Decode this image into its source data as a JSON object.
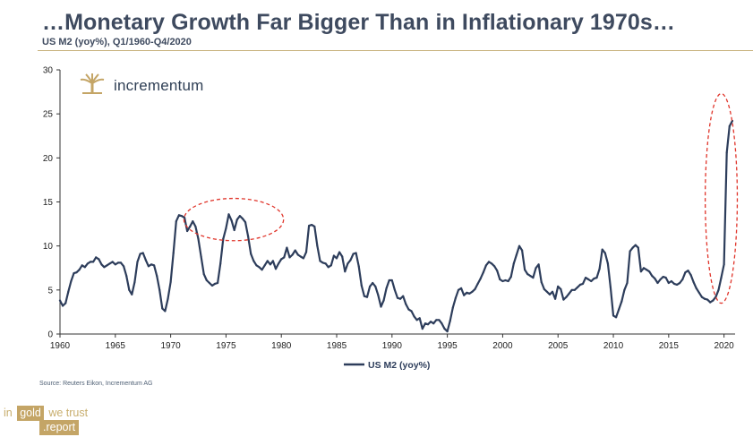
{
  "header": {
    "title": "…Monetary Growth Far Bigger Than in Inflationary 1970s…",
    "subtitle": "US M2 (yoy%), Q1/1960-Q4/2020"
  },
  "logo": {
    "text": "incrementum"
  },
  "source": "Source: Reuters Eikon, Incrementum AG",
  "brand": {
    "part1": "in",
    "part2": "gold",
    "part3": "we trust",
    "part4": ".report"
  },
  "colors": {
    "line": "#2d3d5b",
    "accent": "#c4a566",
    "highlight": "#e0342a"
  },
  "chart_data": {
    "type": "line",
    "title": "US M2 (yoy%)",
    "xlim": [
      1960,
      2021
    ],
    "ylim": [
      0,
      30
    ],
    "x_ticks": [
      1960,
      1965,
      1970,
      1975,
      1980,
      1985,
      1990,
      1995,
      2000,
      2005,
      2010,
      2015,
      2020
    ],
    "y_ticks": [
      0,
      5,
      10,
      15,
      20,
      25,
      30
    ],
    "legend": {
      "label": "US M2 (yoy%)",
      "position": "bottom"
    },
    "annotations": [
      {
        "shape": "ellipse",
        "note": "1970s peak",
        "x_range": [
          1971.2,
          1980.2
        ],
        "y_range": [
          10.6,
          15.4
        ]
      },
      {
        "shape": "ellipse",
        "note": "2020 surge",
        "x_range": [
          2018.3,
          2021.2
        ],
        "y_range": [
          3.5,
          27.3
        ]
      }
    ],
    "series": [
      {
        "name": "US M2 (yoy%)",
        "points": [
          [
            1960.0,
            3.8
          ],
          [
            1960.25,
            3.2
          ],
          [
            1960.5,
            3.5
          ],
          [
            1960.75,
            4.8
          ],
          [
            1961.0,
            6.0
          ],
          [
            1961.25,
            6.9
          ],
          [
            1961.5,
            7.0
          ],
          [
            1961.75,
            7.3
          ],
          [
            1962.0,
            7.8
          ],
          [
            1962.25,
            7.6
          ],
          [
            1962.5,
            8.0
          ],
          [
            1962.75,
            8.2
          ],
          [
            1963.0,
            8.2
          ],
          [
            1963.25,
            8.7
          ],
          [
            1963.5,
            8.5
          ],
          [
            1963.75,
            7.9
          ],
          [
            1964.0,
            7.6
          ],
          [
            1964.25,
            7.8
          ],
          [
            1964.5,
            8.0
          ],
          [
            1964.75,
            8.2
          ],
          [
            1965.0,
            7.9
          ],
          [
            1965.25,
            8.1
          ],
          [
            1965.5,
            8.1
          ],
          [
            1965.75,
            7.7
          ],
          [
            1966.0,
            6.6
          ],
          [
            1966.25,
            5.0
          ],
          [
            1966.5,
            4.5
          ],
          [
            1966.75,
            5.9
          ],
          [
            1967.0,
            8.2
          ],
          [
            1967.25,
            9.1
          ],
          [
            1967.5,
            9.2
          ],
          [
            1967.75,
            8.4
          ],
          [
            1968.0,
            7.7
          ],
          [
            1968.25,
            7.9
          ],
          [
            1968.5,
            7.8
          ],
          [
            1968.75,
            6.6
          ],
          [
            1969.0,
            5.0
          ],
          [
            1969.25,
            2.9
          ],
          [
            1969.5,
            2.6
          ],
          [
            1969.75,
            4.0
          ],
          [
            1970.0,
            5.9
          ],
          [
            1970.25,
            9.2
          ],
          [
            1970.5,
            12.8
          ],
          [
            1970.75,
            13.5
          ],
          [
            1971.0,
            13.4
          ],
          [
            1971.25,
            13.2
          ],
          [
            1971.5,
            11.7
          ],
          [
            1971.75,
            12.2
          ],
          [
            1972.0,
            12.8
          ],
          [
            1972.25,
            12.2
          ],
          [
            1972.5,
            10.8
          ],
          [
            1972.75,
            8.8
          ],
          [
            1973.0,
            6.8
          ],
          [
            1973.25,
            6.1
          ],
          [
            1973.5,
            5.8
          ],
          [
            1973.75,
            5.5
          ],
          [
            1974.0,
            5.7
          ],
          [
            1974.25,
            5.8
          ],
          [
            1974.5,
            8.0
          ],
          [
            1974.75,
            10.8
          ],
          [
            1975.0,
            12.0
          ],
          [
            1975.25,
            13.6
          ],
          [
            1975.5,
            12.9
          ],
          [
            1975.75,
            11.8
          ],
          [
            1976.0,
            13.0
          ],
          [
            1976.25,
            13.4
          ],
          [
            1976.5,
            13.1
          ],
          [
            1976.75,
            12.7
          ],
          [
            1977.0,
            11.1
          ],
          [
            1977.25,
            9.1
          ],
          [
            1977.5,
            8.3
          ],
          [
            1977.75,
            7.8
          ],
          [
            1978.0,
            7.6
          ],
          [
            1978.25,
            7.3
          ],
          [
            1978.5,
            7.8
          ],
          [
            1978.75,
            8.3
          ],
          [
            1979.0,
            7.9
          ],
          [
            1979.25,
            8.3
          ],
          [
            1979.5,
            7.4
          ],
          [
            1979.75,
            8.0
          ],
          [
            1980.0,
            8.5
          ],
          [
            1980.25,
            8.7
          ],
          [
            1980.5,
            9.8
          ],
          [
            1980.75,
            8.7
          ],
          [
            1981.0,
            9.0
          ],
          [
            1981.25,
            9.5
          ],
          [
            1981.5,
            9.0
          ],
          [
            1981.75,
            8.8
          ],
          [
            1982.0,
            8.6
          ],
          [
            1982.25,
            9.3
          ],
          [
            1982.5,
            12.3
          ],
          [
            1982.75,
            12.4
          ],
          [
            1983.0,
            12.2
          ],
          [
            1983.25,
            10.0
          ],
          [
            1983.5,
            8.3
          ],
          [
            1983.75,
            8.1
          ],
          [
            1984.0,
            8.0
          ],
          [
            1984.25,
            7.6
          ],
          [
            1984.5,
            7.8
          ],
          [
            1984.75,
            8.9
          ],
          [
            1985.0,
            8.6
          ],
          [
            1985.25,
            9.3
          ],
          [
            1985.5,
            8.8
          ],
          [
            1985.75,
            7.1
          ],
          [
            1986.0,
            8.0
          ],
          [
            1986.25,
            8.4
          ],
          [
            1986.5,
            9.1
          ],
          [
            1986.75,
            9.2
          ],
          [
            1987.0,
            7.7
          ],
          [
            1987.25,
            5.5
          ],
          [
            1987.5,
            4.3
          ],
          [
            1987.75,
            4.2
          ],
          [
            1988.0,
            5.4
          ],
          [
            1988.25,
            5.8
          ],
          [
            1988.5,
            5.4
          ],
          [
            1988.75,
            4.4
          ],
          [
            1989.0,
            3.1
          ],
          [
            1989.25,
            3.8
          ],
          [
            1989.5,
            5.2
          ],
          [
            1989.75,
            6.1
          ],
          [
            1990.0,
            6.1
          ],
          [
            1990.25,
            5.0
          ],
          [
            1990.5,
            4.1
          ],
          [
            1990.75,
            4.0
          ],
          [
            1991.0,
            4.3
          ],
          [
            1991.25,
            3.4
          ],
          [
            1991.5,
            2.8
          ],
          [
            1991.75,
            2.6
          ],
          [
            1992.0,
            2.0
          ],
          [
            1992.25,
            1.6
          ],
          [
            1992.5,
            1.8
          ],
          [
            1992.75,
            0.6
          ],
          [
            1993.0,
            1.2
          ],
          [
            1993.25,
            1.1
          ],
          [
            1993.5,
            1.4
          ],
          [
            1993.75,
            1.2
          ],
          [
            1994.0,
            1.6
          ],
          [
            1994.25,
            1.6
          ],
          [
            1994.5,
            1.2
          ],
          [
            1994.75,
            0.6
          ],
          [
            1995.0,
            0.3
          ],
          [
            1995.25,
            1.5
          ],
          [
            1995.5,
            3.0
          ],
          [
            1995.75,
            4.1
          ],
          [
            1996.0,
            5.0
          ],
          [
            1996.25,
            5.2
          ],
          [
            1996.5,
            4.4
          ],
          [
            1996.75,
            4.7
          ],
          [
            1997.0,
            4.6
          ],
          [
            1997.25,
            4.8
          ],
          [
            1997.5,
            5.1
          ],
          [
            1997.75,
            5.7
          ],
          [
            1998.0,
            6.3
          ],
          [
            1998.25,
            7.0
          ],
          [
            1998.5,
            7.8
          ],
          [
            1998.75,
            8.2
          ],
          [
            1999.0,
            8.0
          ],
          [
            1999.25,
            7.7
          ],
          [
            1999.5,
            7.2
          ],
          [
            1999.75,
            6.2
          ],
          [
            2000.0,
            6.0
          ],
          [
            2000.25,
            6.1
          ],
          [
            2000.5,
            6.0
          ],
          [
            2000.75,
            6.5
          ],
          [
            2001.0,
            8.0
          ],
          [
            2001.25,
            9.0
          ],
          [
            2001.5,
            10.0
          ],
          [
            2001.75,
            9.5
          ],
          [
            2002.0,
            7.3
          ],
          [
            2002.25,
            6.8
          ],
          [
            2002.5,
            6.6
          ],
          [
            2002.75,
            6.4
          ],
          [
            2003.0,
            7.5
          ],
          [
            2003.25,
            7.9
          ],
          [
            2003.5,
            5.9
          ],
          [
            2003.75,
            5.1
          ],
          [
            2004.0,
            4.8
          ],
          [
            2004.25,
            4.5
          ],
          [
            2004.5,
            4.8
          ],
          [
            2004.75,
            4.0
          ],
          [
            2005.0,
            5.4
          ],
          [
            2005.25,
            5.1
          ],
          [
            2005.5,
            3.9
          ],
          [
            2005.75,
            4.2
          ],
          [
            2006.0,
            4.6
          ],
          [
            2006.25,
            5.0
          ],
          [
            2006.5,
            5.0
          ],
          [
            2006.75,
            5.3
          ],
          [
            2007.0,
            5.6
          ],
          [
            2007.25,
            5.7
          ],
          [
            2007.5,
            6.4
          ],
          [
            2007.75,
            6.2
          ],
          [
            2008.0,
            6.0
          ],
          [
            2008.25,
            6.3
          ],
          [
            2008.5,
            6.4
          ],
          [
            2008.75,
            7.4
          ],
          [
            2009.0,
            9.6
          ],
          [
            2009.25,
            9.2
          ],
          [
            2009.5,
            8.0
          ],
          [
            2009.75,
            5.3
          ],
          [
            2010.0,
            2.1
          ],
          [
            2010.25,
            1.9
          ],
          [
            2010.5,
            2.8
          ],
          [
            2010.75,
            3.7
          ],
          [
            2011.0,
            5.0
          ],
          [
            2011.25,
            5.8
          ],
          [
            2011.5,
            9.4
          ],
          [
            2011.75,
            9.8
          ],
          [
            2012.0,
            10.1
          ],
          [
            2012.25,
            9.8
          ],
          [
            2012.5,
            7.1
          ],
          [
            2012.75,
            7.5
          ],
          [
            2013.0,
            7.3
          ],
          [
            2013.25,
            7.1
          ],
          [
            2013.5,
            6.6
          ],
          [
            2013.75,
            6.3
          ],
          [
            2014.0,
            5.8
          ],
          [
            2014.25,
            6.2
          ],
          [
            2014.5,
            6.5
          ],
          [
            2014.75,
            6.4
          ],
          [
            2015.0,
            5.8
          ],
          [
            2015.25,
            6.0
          ],
          [
            2015.5,
            5.7
          ],
          [
            2015.75,
            5.6
          ],
          [
            2016.0,
            5.8
          ],
          [
            2016.25,
            6.2
          ],
          [
            2016.5,
            7.0
          ],
          [
            2016.75,
            7.2
          ],
          [
            2017.0,
            6.7
          ],
          [
            2017.25,
            5.9
          ],
          [
            2017.5,
            5.2
          ],
          [
            2017.75,
            4.7
          ],
          [
            2018.0,
            4.2
          ],
          [
            2018.25,
            4.0
          ],
          [
            2018.5,
            3.9
          ],
          [
            2018.75,
            3.6
          ],
          [
            2019.0,
            3.8
          ],
          [
            2019.25,
            4.2
          ],
          [
            2019.5,
            5.0
          ],
          [
            2019.75,
            6.4
          ],
          [
            2020.0,
            7.9
          ],
          [
            2020.25,
            20.6
          ],
          [
            2020.5,
            23.6
          ],
          [
            2020.75,
            24.2
          ]
        ]
      }
    ]
  }
}
